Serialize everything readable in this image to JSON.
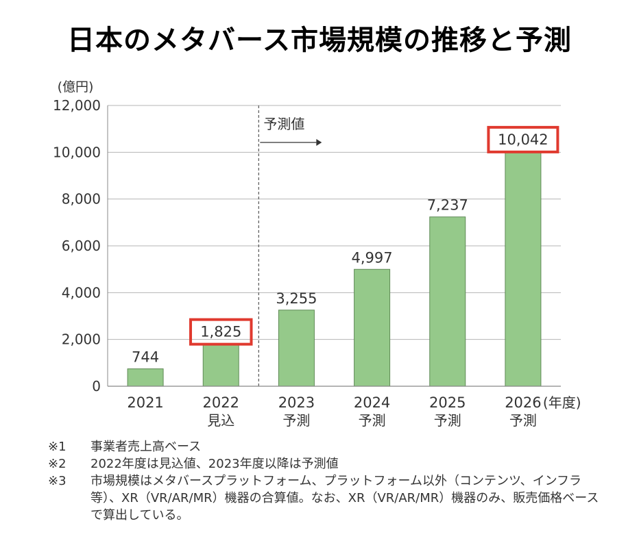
{
  "title": "日本のメタバース市場規模の推移と予測",
  "chart_data": {
    "type": "bar",
    "unit_label": "(億円)",
    "x_unit_label": "(年度)",
    "categories": [
      "2021",
      "2022",
      "2023",
      "2024",
      "2025",
      "2026"
    ],
    "sublabels": [
      "",
      "見込",
      "予測",
      "予測",
      "予測",
      "予測"
    ],
    "values": [
      744,
      1825,
      3255,
      4997,
      7237,
      10042
    ],
    "value_labels": [
      "744",
      "1,825",
      "3,255",
      "4,997",
      "7,237",
      "10,042"
    ],
    "highlighted": [
      false,
      true,
      false,
      false,
      false,
      true
    ],
    "ylim": [
      0,
      12000
    ],
    "yticks": [
      0,
      2000,
      4000,
      6000,
      8000,
      10000,
      12000
    ],
    "ytick_labels": [
      "0",
      "2,000",
      "4,000",
      "6,000",
      "8,000",
      "10,000",
      "12,000"
    ],
    "grid": true,
    "forecast_label": "予測値",
    "bar_color": "#95c98a",
    "highlight_color": "#e03a2f"
  },
  "notes": [
    {
      "mark": "※1",
      "text": "事業者売上高ベース"
    },
    {
      "mark": "※2",
      "text": "2022年度は見込値、2023年度以降は予測値"
    },
    {
      "mark": "※3",
      "text": "市場規模はメタバースプラットフォーム、プラットフォーム以外（コンテンツ、インフラ等）、XR（VR/AR/MR）機器の合算値。なお、XR（VR/AR/MR）機器のみ、販売価格ベースで算出している。"
    }
  ]
}
